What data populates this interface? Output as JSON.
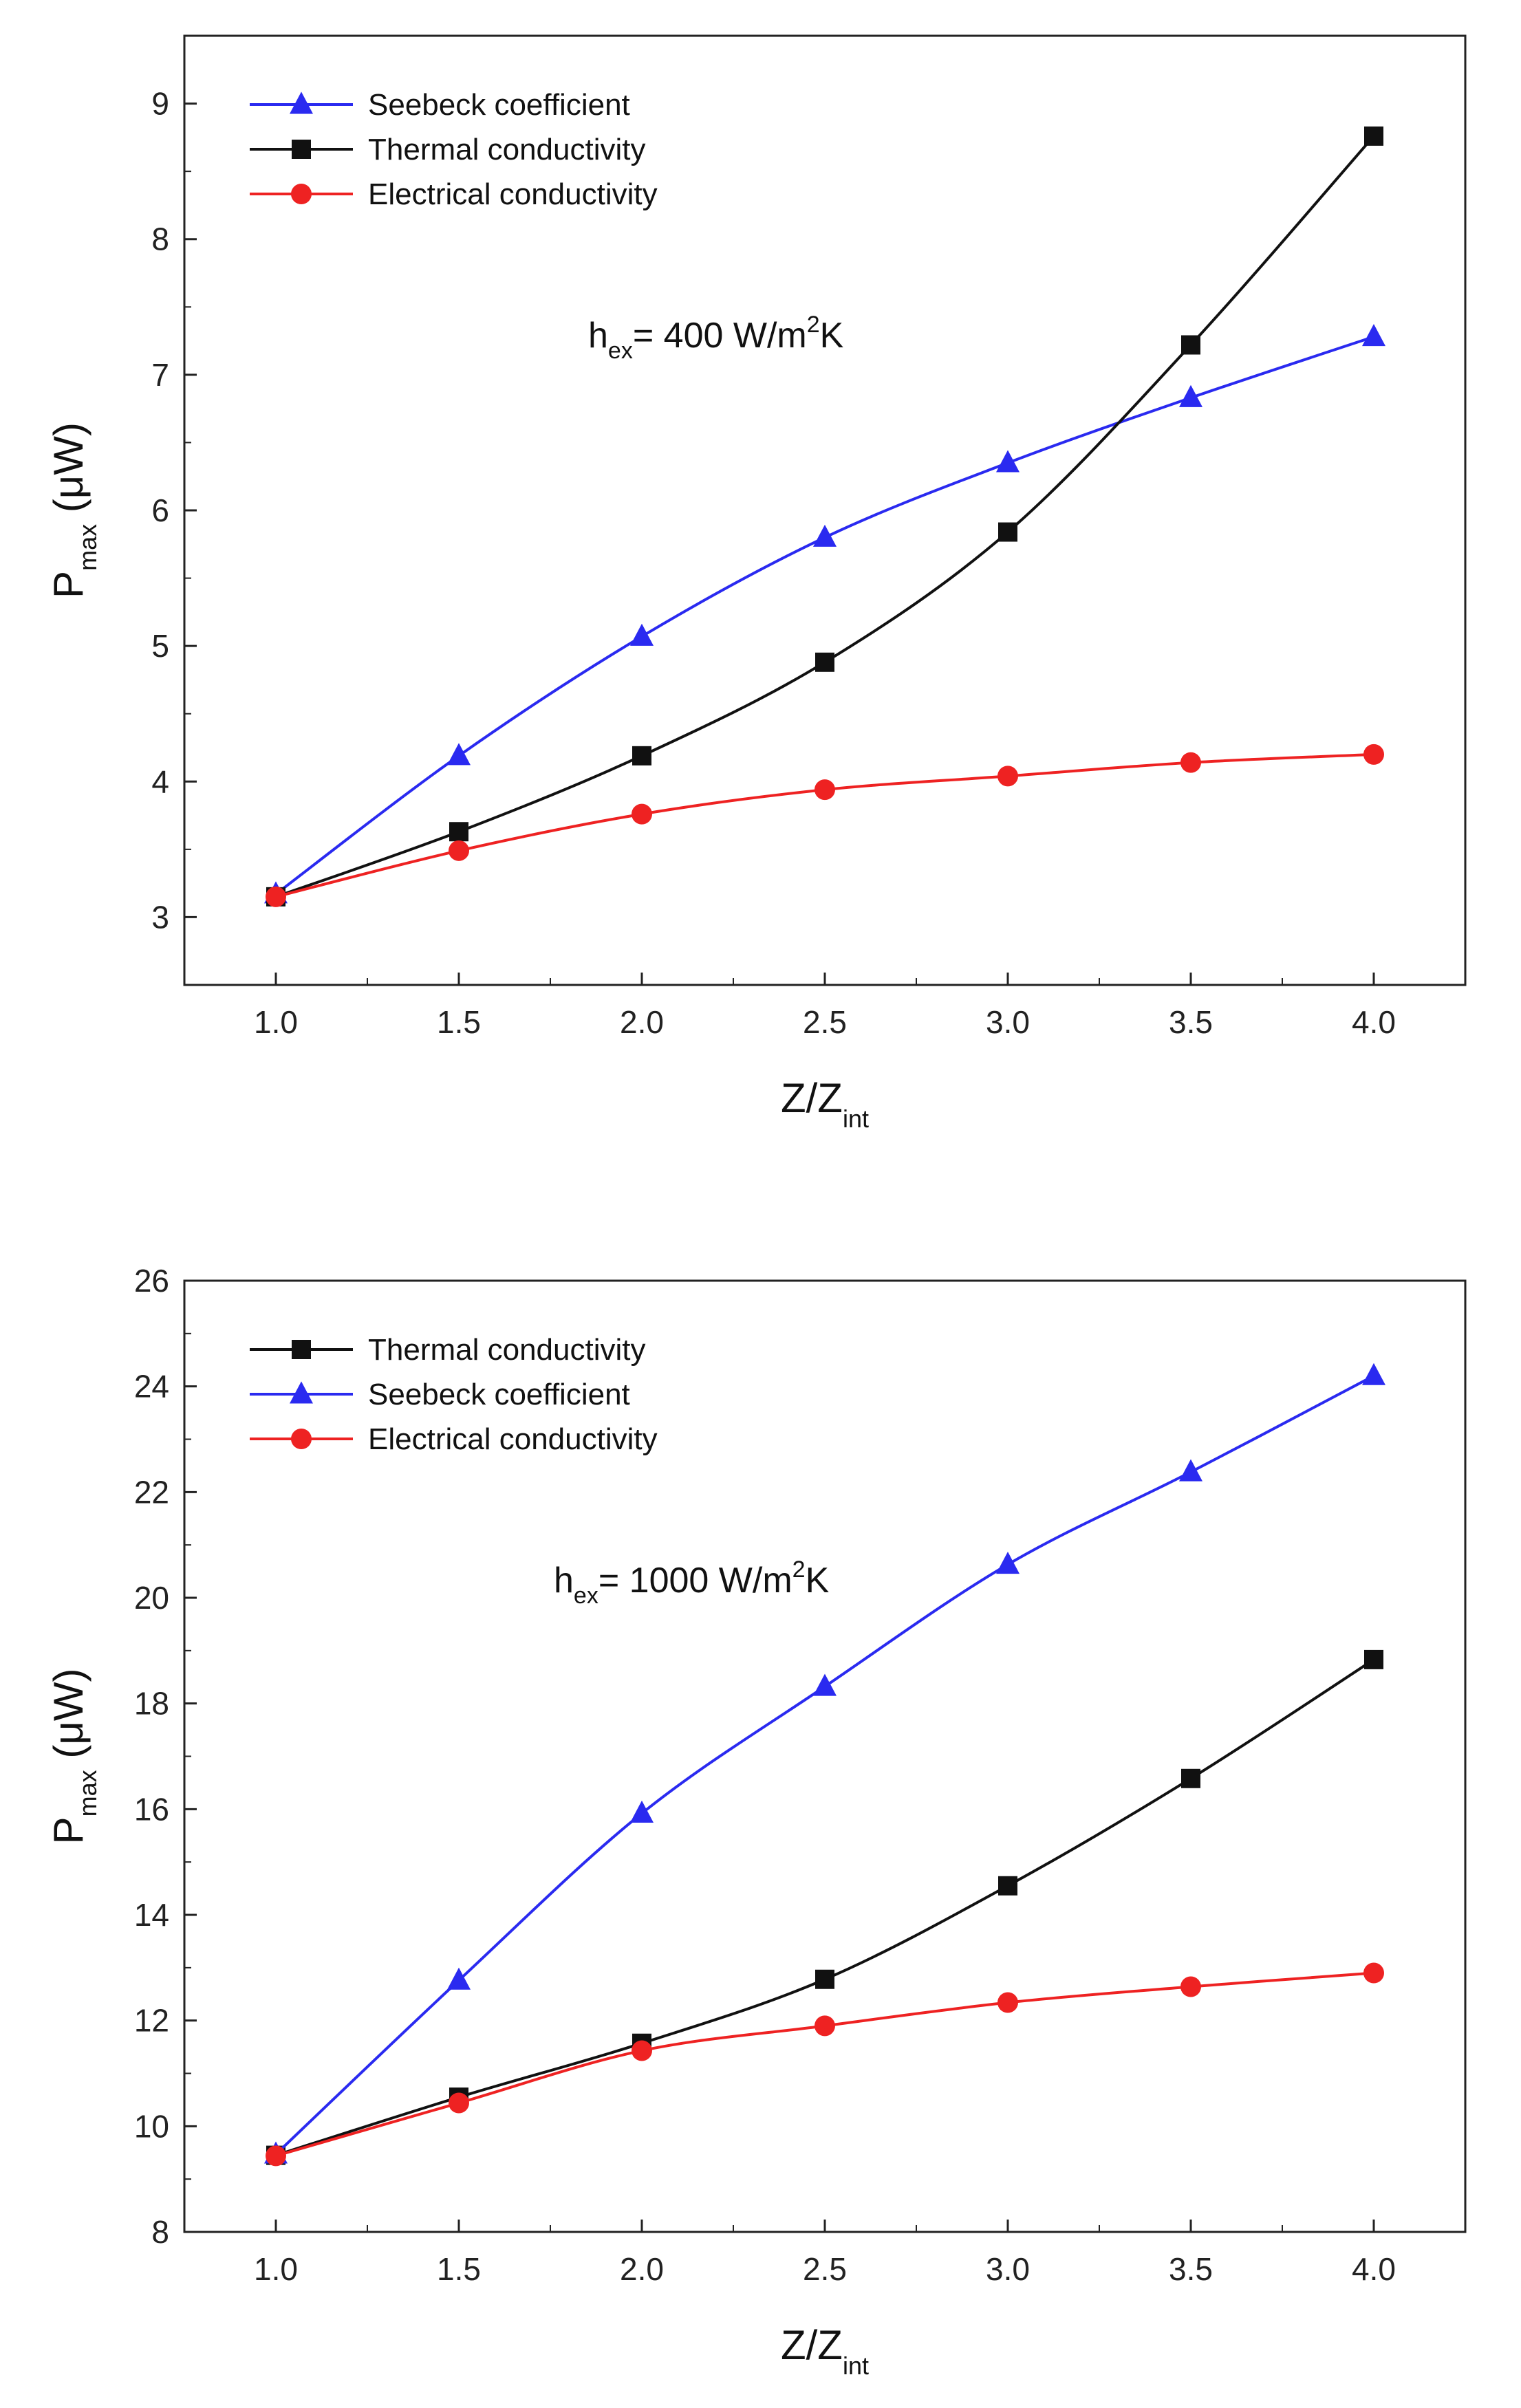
{
  "chart_data": [
    {
      "type": "line",
      "title": "",
      "xlabel": {
        "main": "Z/Z",
        "sub": "int"
      },
      "ylabel": {
        "main": "P",
        "sub": "max",
        "unit": " (μW)"
      },
      "xlim": [
        0.75,
        4.25
      ],
      "ylim": [
        2.5,
        9.5
      ],
      "xticks": [
        1.0,
        1.5,
        2.0,
        2.5,
        3.0,
        3.5,
        4.0
      ],
      "xtick_labels": [
        "1.0",
        "1.5",
        "2.0",
        "2.5",
        "3.0",
        "3.5",
        "4.0"
      ],
      "yticks": [
        3,
        4,
        5,
        6,
        7,
        8,
        9
      ],
      "ytick_labels": [
        "3",
        "4",
        "5",
        "6",
        "7",
        "8",
        "9"
      ],
      "grid": false,
      "legend_position": "top-left",
      "annotation": {
        "pre": "h",
        "sub": "ex",
        "mid": "= 400 W/m",
        "sup": "2",
        "post": "K"
      },
      "x": [
        1.0,
        1.5,
        2.0,
        2.5,
        3.0,
        3.5,
        4.0
      ],
      "series": [
        {
          "name": "Seebeck coefficient",
          "color": "#2a2af0",
          "marker": "triangle",
          "values": [
            3.17,
            4.19,
            5.07,
            5.8,
            6.35,
            6.83,
            7.28
          ]
        },
        {
          "name": "Thermal conductivity",
          "color": "#111111",
          "marker": "square",
          "values": [
            3.15,
            3.63,
            4.19,
            4.88,
            5.84,
            7.22,
            8.76
          ]
        },
        {
          "name": "Electrical conductivity",
          "color": "#ee2222",
          "marker": "circle",
          "values": [
            3.15,
            3.49,
            3.76,
            3.94,
            4.04,
            4.14,
            4.2
          ]
        }
      ]
    },
    {
      "type": "line",
      "title": "",
      "xlabel": {
        "main": "Z/Z",
        "sub": "int"
      },
      "ylabel": {
        "main": "P",
        "sub": "max",
        "unit": " (μW)"
      },
      "xlim": [
        0.75,
        4.25
      ],
      "ylim": [
        8,
        26
      ],
      "xticks": [
        1.0,
        1.5,
        2.0,
        2.5,
        3.0,
        3.5,
        4.0
      ],
      "xtick_labels": [
        "1.0",
        "1.5",
        "2.0",
        "2.5",
        "3.0",
        "3.5",
        "4.0"
      ],
      "yticks": [
        8,
        10,
        12,
        14,
        16,
        18,
        20,
        22,
        24,
        26
      ],
      "ytick_labels": [
        "8",
        "10",
        "12",
        "14",
        "16",
        "18",
        "20",
        "22",
        "24",
        "26"
      ],
      "grid": false,
      "legend_position": "top-left",
      "annotation": {
        "pre": "h",
        "sub": "ex",
        "mid": "= 1000 W/m",
        "sup": "2",
        "post": "K"
      },
      "x": [
        1.0,
        1.5,
        2.0,
        2.5,
        3.0,
        3.5,
        4.0
      ],
      "series": [
        {
          "name": "Thermal conductivity",
          "color": "#111111",
          "marker": "square",
          "values": [
            9.45,
            10.55,
            11.57,
            12.78,
            14.55,
            16.58,
            18.83
          ]
        },
        {
          "name": "Seebeck coefficient",
          "color": "#2a2af0",
          "marker": "triangle",
          "values": [
            9.47,
            12.76,
            15.92,
            18.32,
            20.63,
            22.38,
            24.2
          ]
        },
        {
          "name": "Electrical conductivity",
          "color": "#ee2222",
          "marker": "circle",
          "values": [
            9.44,
            10.44,
            11.43,
            11.9,
            12.34,
            12.64,
            12.9
          ]
        }
      ]
    }
  ]
}
